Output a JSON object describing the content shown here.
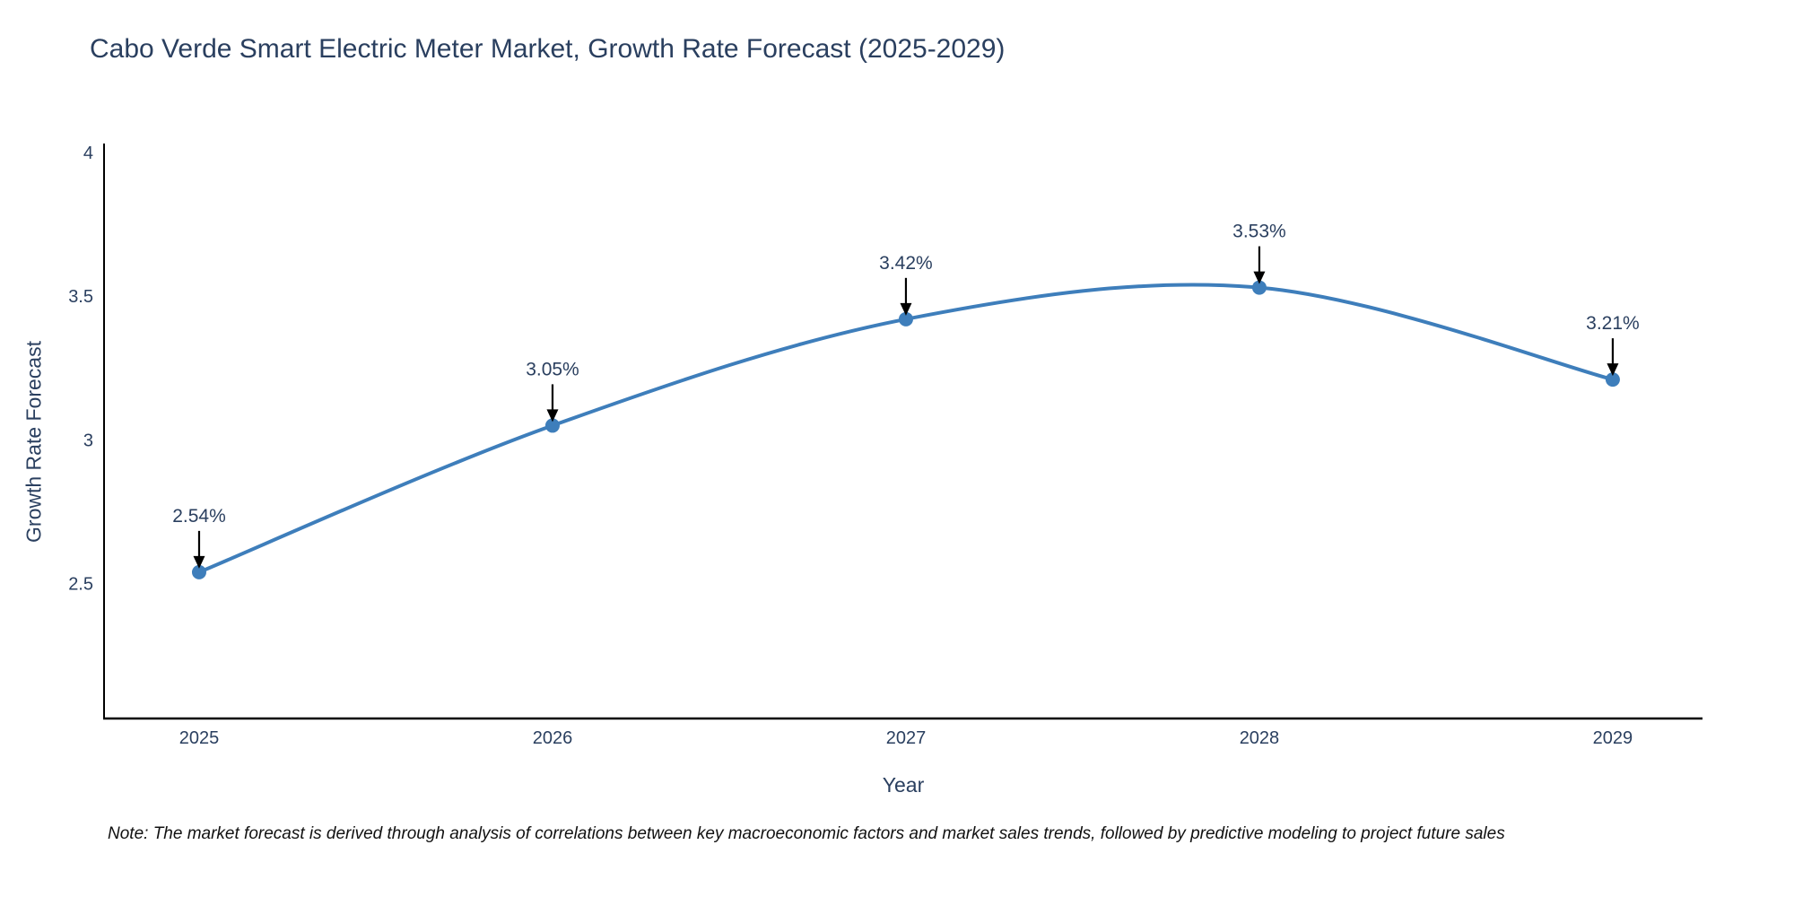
{
  "title": "Cabo Verde Smart Electric Meter Market, Growth Rate Forecast (2025-2029)",
  "note": "Note: The market forecast is derived through analysis of correlations between key macroeconomic factors and market sales trends, followed by predictive modeling to project future sales",
  "chart_data": {
    "type": "line",
    "title": "Cabo Verde Smart Electric Meter Market, Growth Rate Forecast (2025-2029)",
    "xlabel": "Year",
    "ylabel": "Growth Rate Forecast",
    "x": [
      2025,
      2026,
      2027,
      2028,
      2029
    ],
    "y": [
      2.54,
      3.05,
      3.42,
      3.53,
      3.21
    ],
    "point_labels": [
      "2.54%",
      "3.05%",
      "3.42%",
      "3.53%",
      "3.21%"
    ],
    "xtick_labels": [
      "2025",
      "2026",
      "2027",
      "2028",
      "2029"
    ],
    "yticks": [
      2.5,
      3,
      3.5,
      4
    ],
    "ytick_labels": [
      "2.5",
      "3",
      "3.5",
      "4"
    ],
    "xlim": [
      2024.731,
      2029.254
    ],
    "ylim": [
      2.031,
      4.031
    ],
    "line_shape": "spline",
    "grid": false,
    "legend": false,
    "line_color": "#3e7ebb",
    "marker_color": "#3e7ebb",
    "axis_color": "#000000",
    "tick_color": "#2a3f5f",
    "annotation_text_color": "#2a3f5f",
    "arrow_color": "#000000",
    "background_color": "#ffffff"
  }
}
